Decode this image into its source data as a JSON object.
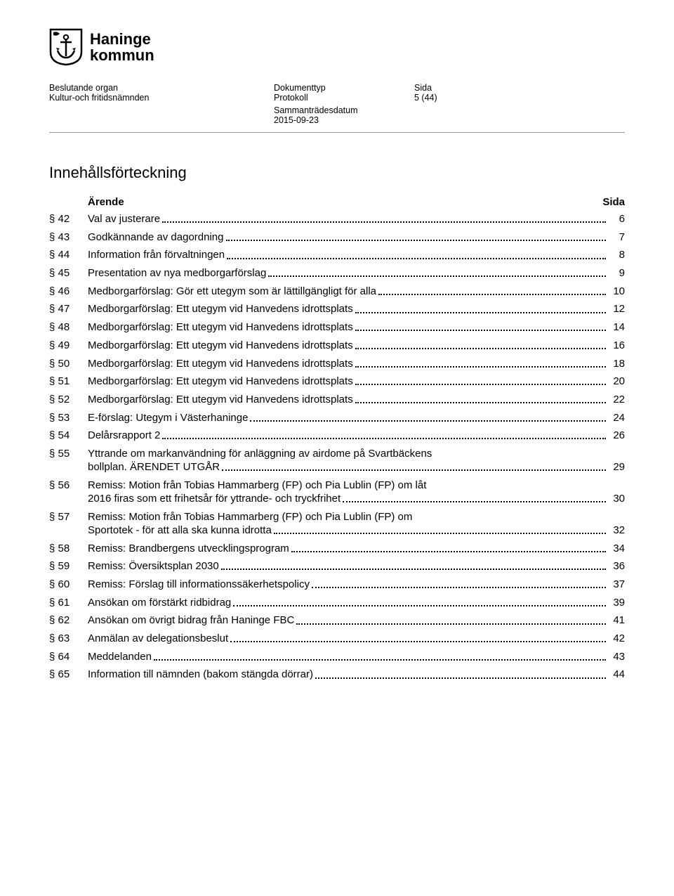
{
  "logo": {
    "name": "Haninge",
    "sub": "kommun"
  },
  "meta": {
    "col1_label": "Beslutande organ",
    "col1_val": "Kultur-och fritidsnämnden",
    "col2_label": "Dokumenttyp",
    "col2_val": "Protokoll",
    "col3_label": "Sida",
    "col3_val": "5 (44)",
    "date_label": "Sammanträdesdatum",
    "date_val": "2015-09-23"
  },
  "toc_title": "Innehållsförteckning",
  "toc_header": {
    "arende": "Ärende",
    "sida": "Sida"
  },
  "colors": {
    "text": "#000000",
    "background": "#ffffff",
    "divider": "#999999"
  },
  "entries": [
    {
      "sec": "§ 42",
      "title": "Val av justerare",
      "page": "6"
    },
    {
      "sec": "§ 43",
      "title": "Godkännande av dagordning",
      "page": "7"
    },
    {
      "sec": "§ 44",
      "title": "Information från förvaltningen",
      "page": "8"
    },
    {
      "sec": "§ 45",
      "title": "Presentation av nya medborgarförslag",
      "page": "9"
    },
    {
      "sec": "§ 46",
      "title": "Medborgarförslag: Gör ett utegym som är lättillgängligt för alla",
      "page": "10"
    },
    {
      "sec": "§ 47",
      "title": "Medborgarförslag: Ett utegym vid Hanvedens idrottsplats",
      "page": "12"
    },
    {
      "sec": "§ 48",
      "title": "Medborgarförslag: Ett utegym vid Hanvedens idrottsplats",
      "page": "14"
    },
    {
      "sec": "§ 49",
      "title": "Medborgarförslag: Ett utegym vid Hanvedens idrottsplats",
      "page": "16"
    },
    {
      "sec": "§ 50",
      "title": "Medborgarförslag: Ett utegym vid Hanvedens idrottsplats",
      "page": "18"
    },
    {
      "sec": "§ 51",
      "title": "Medborgarförslag: Ett utegym vid Hanvedens idrottsplats",
      "page": "20"
    },
    {
      "sec": "§ 52",
      "title": "Medborgarförslag: Ett utegym vid Hanvedens idrottsplats",
      "page": "22"
    },
    {
      "sec": "§ 53",
      "title": "E-förslag: Utegym i Västerhaninge",
      "page": "24"
    },
    {
      "sec": "§ 54",
      "title": "Delårsrapport 2",
      "page": "26"
    },
    {
      "sec": "§ 55",
      "title_pre": "Yttrande om markanvändning för anläggning av airdome på Svartbäckens",
      "title_last": "bollplan. ÄRENDET UTGÅR",
      "page": "29",
      "multi": true
    },
    {
      "sec": "§ 56",
      "title_pre": "Remiss: Motion från Tobias Hammarberg (FP) och Pia Lublin (FP) om låt",
      "title_last": "2016 firas som ett frihetsår för yttrande- och tryckfrihet",
      "page": "30",
      "multi": true
    },
    {
      "sec": "§ 57",
      "title_pre": "Remiss: Motion från Tobias Hammarberg (FP) och Pia Lublin (FP) om",
      "title_last": "Sportotek - för att alla ska kunna idrotta",
      "page": "32",
      "multi": true
    },
    {
      "sec": "§ 58",
      "title": "Remiss: Brandbergens utvecklingsprogram",
      "page": "34"
    },
    {
      "sec": "§ 59",
      "title": "Remiss: Översiktsplan 2030",
      "page": "36"
    },
    {
      "sec": "§ 60",
      "title": "Remiss: Förslag till informationssäkerhetspolicy",
      "page": "37"
    },
    {
      "sec": "§ 61",
      "title": "Ansökan om förstärkt ridbidrag",
      "page": "39"
    },
    {
      "sec": "§ 62",
      "title": "Ansökan om övrigt bidrag från Haninge FBC",
      "page": "41"
    },
    {
      "sec": "§ 63",
      "title": "Anmälan av delegationsbeslut",
      "page": "42"
    },
    {
      "sec": "§ 64",
      "title": "Meddelanden",
      "page": "43"
    },
    {
      "sec": "§ 65",
      "title": "Information till nämnden (bakom stängda dörrar)",
      "page": "44"
    }
  ]
}
